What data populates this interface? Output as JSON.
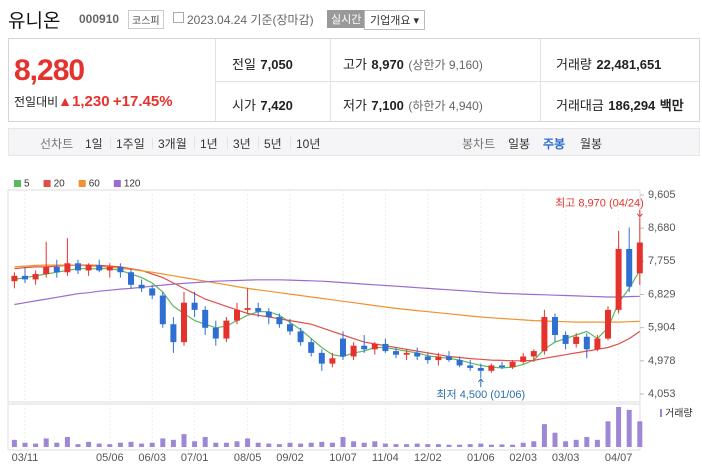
{
  "header": {
    "name": "유니온",
    "code": "000910",
    "market": "코스피",
    "date": "2023.04.24",
    "basis": "기준(장마감)",
    "realtime": "실시간",
    "company_info": "기업개요"
  },
  "quote": {
    "price": "8,280",
    "change_label": "전일대비",
    "change": "1,230",
    "change_pct": "+17.45%"
  },
  "stats": [
    {
      "label": "전일",
      "value": "7,050"
    },
    {
      "label": "고가",
      "value": "8,970",
      "note": "(상한가 9,160)"
    },
    {
      "label": "거래량",
      "value": "22,481,651"
    },
    {
      "label": "시가",
      "value": "7,420"
    },
    {
      "label": "저가",
      "value": "7,100",
      "note": "(하한가 4,940)"
    },
    {
      "label": "거래대금",
      "value": "186,294",
      "unit": "백만"
    }
  ],
  "tabs": {
    "chart_label": "선차트",
    "periods": [
      "1일",
      "1주일",
      "3개월",
      "1년",
      "3년",
      "5년",
      "10년"
    ],
    "candle_label": "봉차트",
    "candles": [
      "일봉",
      "주봉",
      "월봉"
    ],
    "selected": "주봉"
  },
  "chart_data": {
    "type": "candlestick",
    "categories": [
      null,
      "03/11",
      null,
      null,
      null,
      null,
      null,
      null,
      null,
      "05/06",
      null,
      null,
      null,
      "06/03",
      null,
      null,
      null,
      "07/01",
      null,
      null,
      null,
      null,
      "08/05",
      null,
      null,
      null,
      "09/02",
      null,
      null,
      null,
      null,
      "10/07",
      null,
      null,
      null,
      "11/04",
      null,
      null,
      null,
      "12/02",
      null,
      null,
      null,
      null,
      "01/06",
      null,
      null,
      null,
      "02/03",
      null,
      null,
      null,
      "03/03",
      null,
      null,
      null,
      null,
      "04/07",
      null,
      null
    ],
    "open": [
      7200,
      7350,
      7250,
      7400,
      7600,
      7450,
      7700,
      7500,
      7650,
      7500,
      7600,
      7450,
      7100,
      7000,
      6800,
      6000,
      5500,
      6600,
      6400,
      5900,
      5600,
      6100,
      6400,
      6450,
      6350,
      6200,
      6000,
      5800,
      5500,
      5200,
      4900,
      5600,
      5100,
      5400,
      5300,
      5450,
      5250,
      5150,
      5200,
      5100,
      5000,
      5100,
      5000,
      4850,
      4780,
      4700,
      4850,
      4800,
      4950,
      5100,
      5250,
      6200,
      5700,
      5450,
      5650,
      5300,
      5600,
      6400,
      8100,
      7420
    ],
    "high": [
      7450,
      7600,
      7500,
      8300,
      7800,
      8400,
      7800,
      7700,
      7800,
      7700,
      7700,
      7550,
      7250,
      7100,
      6900,
      6200,
      6900,
      6900,
      6500,
      6100,
      6200,
      6600,
      7000,
      6600,
      6450,
      6300,
      6150,
      5900,
      5600,
      5300,
      5200,
      5800,
      5500,
      5700,
      5500,
      5600,
      5350,
      5300,
      5350,
      5200,
      5200,
      5250,
      5100,
      5000,
      4900,
      4900,
      4950,
      5000,
      5200,
      5300,
      6400,
      6300,
      5800,
      5750,
      5750,
      5700,
      6500,
      8600,
      8700,
      8970
    ],
    "low": [
      7000,
      7150,
      7100,
      7300,
      7300,
      7350,
      7400,
      7350,
      7450,
      7300,
      7300,
      7000,
      6900,
      6700,
      5900,
      5200,
      5400,
      6200,
      5700,
      5400,
      5500,
      6000,
      6300,
      6200,
      6000,
      5900,
      5700,
      5400,
      5100,
      4700,
      4800,
      5000,
      5000,
      5200,
      5150,
      5200,
      5050,
      5000,
      5000,
      4900,
      4850,
      4950,
      4800,
      4700,
      4500,
      4650,
      4750,
      4750,
      4900,
      4950,
      5150,
      5500,
      5300,
      5350,
      5050,
      5250,
      5550,
      6300,
      6900,
      7100
    ],
    "close": [
      7350,
      7250,
      7400,
      7600,
      7450,
      7700,
      7500,
      7650,
      7500,
      7600,
      7450,
      7100,
      7000,
      6800,
      6000,
      5500,
      6600,
      6400,
      5900,
      5600,
      6100,
      6400,
      6450,
      6350,
      6200,
      6000,
      5800,
      5500,
      5200,
      4900,
      5050,
      5100,
      5400,
      5300,
      5450,
      5250,
      5150,
      5200,
      5100,
      5000,
      5100,
      5000,
      4850,
      4780,
      4700,
      4850,
      4800,
      4950,
      5100,
      5250,
      6200,
      5700,
      5450,
      5650,
      5300,
      5600,
      6400,
      8100,
      7050,
      8280
    ],
    "up_color": "#e5322d",
    "down_color": "#2f6fd1",
    "ylim": [
      4053,
      9605
    ],
    "yticks": [
      {
        "value": 4053,
        "label": "4,053"
      },
      {
        "value": 4978,
        "label": "4,978"
      },
      {
        "value": 5904,
        "label": "5,904"
      },
      {
        "value": 6829,
        "label": "6,829"
      },
      {
        "value": 7755,
        "label": "7,755"
      },
      {
        "value": 8680,
        "label": "8,680"
      },
      {
        "value": 9605,
        "label": "9,605"
      }
    ],
    "grid": true,
    "overlays": [
      {
        "name": "5",
        "color": "#5cb85c",
        "values": [
          7250,
          7300,
          7350,
          7400,
          7450,
          7500,
          7550,
          7550,
          7550,
          7550,
          7500,
          7400,
          7300,
          7150,
          6900,
          6500,
          6300,
          6100,
          6000,
          5900,
          5950,
          6100,
          6250,
          6350,
          6350,
          6250,
          6050,
          5850,
          5600,
          5350,
          5150,
          5100,
          5200,
          5250,
          5350,
          5350,
          5300,
          5250,
          5200,
          5120,
          5080,
          5050,
          5000,
          4920,
          4850,
          4800,
          4780,
          4800,
          4880,
          5000,
          5300,
          5500,
          5600,
          5700,
          5800,
          5600,
          5900,
          6600,
          7000,
          7500
        ]
      },
      {
        "name": "20",
        "color": "#e0504a",
        "values": [
          7550,
          7580,
          7600,
          7600,
          7620,
          7640,
          7650,
          7650,
          7640,
          7620,
          7600,
          7550,
          7500,
          7400,
          7300,
          7150,
          7000,
          6850,
          6700,
          6600,
          6500,
          6400,
          6300,
          6250,
          6200,
          6150,
          6100,
          6050,
          6000,
          5900,
          5800,
          5700,
          5600,
          5500,
          5450,
          5400,
          5350,
          5300,
          5250,
          5200,
          5150,
          5100,
          5070,
          5040,
          5020,
          5000,
          4990,
          4980,
          4980,
          4990,
          5050,
          5100,
          5150,
          5200,
          5250,
          5300,
          5350,
          5450,
          5600,
          5800
        ]
      },
      {
        "name": "60",
        "color": "#f0922e",
        "values": [
          7600,
          7620,
          7640,
          7650,
          7650,
          7650,
          7640,
          7630,
          7610,
          7590,
          7560,
          7530,
          7490,
          7450,
          7400,
          7350,
          7300,
          7250,
          7200,
          7150,
          7100,
          7050,
          7000,
          6960,
          6920,
          6880,
          6840,
          6800,
          6760,
          6720,
          6680,
          6640,
          6600,
          6560,
          6520,
          6480,
          6440,
          6410,
          6380,
          6350,
          6320,
          6290,
          6260,
          6230,
          6200,
          6180,
          6160,
          6140,
          6120,
          6100,
          6090,
          6080,
          6070,
          6060,
          6060,
          6060,
          6060,
          6060,
          6070,
          6080
        ]
      },
      {
        "name": "120",
        "color": "#9b6ccf",
        "values": [
          6550,
          6600,
          6650,
          6700,
          6750,
          6800,
          6850,
          6880,
          6920,
          6950,
          6980,
          7000,
          7030,
          7060,
          7090,
          7120,
          7140,
          7160,
          7180,
          7200,
          7210,
          7220,
          7230,
          7240,
          7240,
          7240,
          7230,
          7220,
          7210,
          7200,
          7180,
          7160,
          7140,
          7120,
          7100,
          7080,
          7060,
          7040,
          7020,
          7000,
          6980,
          6960,
          6940,
          6920,
          6900,
          6880,
          6860,
          6850,
          6840,
          6830,
          6820,
          6810,
          6800,
          6790,
          6780,
          6770,
          6760,
          6760,
          6770,
          6780
        ]
      }
    ],
    "volume": {
      "name": "거래량",
      "color": "#9d87d6",
      "values": [
        2500000,
        1500000,
        1200000,
        3000000,
        1500000,
        3500000,
        1000000,
        1800000,
        1200000,
        1000000,
        1500000,
        1800000,
        1200000,
        1500000,
        3000000,
        2500000,
        4500000,
        2000000,
        3500000,
        1500000,
        1500000,
        2000000,
        3000000,
        1500000,
        1200000,
        1000000,
        1500000,
        1200000,
        1500000,
        1800000,
        1500000,
        3500000,
        2000000,
        1500000,
        2000000,
        1200000,
        1000000,
        1000000,
        1200000,
        1000000,
        1000000,
        800000,
        800000,
        1000000,
        1200000,
        800000,
        900000,
        800000,
        1500000,
        2000000,
        8000000,
        5000000,
        2000000,
        2500000,
        3500000,
        2500000,
        9000000,
        14000000,
        13000000,
        9000000
      ]
    },
    "annotations": [
      {
        "text": "최고 8,970 (04/24)",
        "kind": "high",
        "value": 8970,
        "color": "#e5322d"
      },
      {
        "text": "최저 4,500 (01/06)",
        "kind": "low",
        "value": 4500,
        "color": "#2f6fa5"
      }
    ]
  }
}
